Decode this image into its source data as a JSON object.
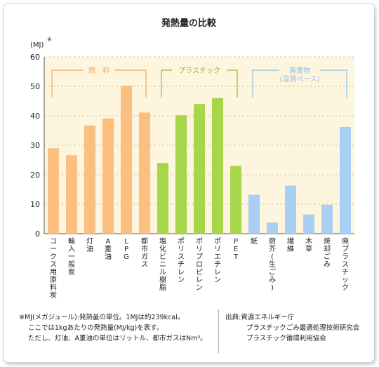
{
  "chart_data": {
    "type": "bar",
    "title": "発熱量の比較",
    "ylabel": "(MJ)",
    "ylabel_mark": "※",
    "ylim": [
      0,
      60
    ],
    "yticks": [
      0,
      10,
      20,
      30,
      40,
      50,
      60
    ],
    "grid": true,
    "categories": [
      "コークス用原料炭",
      "輸入一般炭",
      "灯油",
      "A重油",
      "LPG",
      "都市ガス",
      "塩化ビニル樹脂",
      "ポリスチレン",
      "ポリプロピレン",
      "ポリエチレン",
      "PET",
      "紙",
      "厨芥(生ごみ)",
      "繊維",
      "木草",
      "焼却ごみ",
      "廃プラスチック"
    ],
    "values": [
      29,
      26.6,
      36.7,
      39.1,
      50.2,
      41.1,
      24,
      40.2,
      44,
      46,
      23,
      13.2,
      3.8,
      16.3,
      6.5,
      9.8,
      36.2
    ],
    "city_gas_extension": 3.5,
    "groups": [
      {
        "label": "燃　料",
        "color": "#f5a85a",
        "bar_color": "#fbbf7f",
        "start": 0,
        "end": 5
      },
      {
        "label": "プラスチック",
        "color": "#86c528",
        "bar_color": "#a8d64a",
        "start": 6,
        "end": 10
      },
      {
        "label": "廃棄物",
        "sublabel": "(湿潤ベース)",
        "color": "#8fc2ee",
        "bar_color": "#a9d0f4",
        "start": 11,
        "end": 16
      }
    ]
  },
  "notes": {
    "line1": "※MJ(メガジュール):発熱量の単位。1MJは約239kcal。",
    "line2": "ここでは1kgあたりの発熱量(MJ/kg)を表す。",
    "line3": "ただし、灯油、A重油の単位はリットル、都市ガスはNm³。"
  },
  "source": {
    "label": "出典:資源エネルギー庁",
    "line2": "プラスチックごみ最適処理技術研究会",
    "line3": "プラスチック循環利用協会"
  },
  "colors": {
    "plot_bg": "#fdf5de",
    "grid": "#d6cba0"
  }
}
